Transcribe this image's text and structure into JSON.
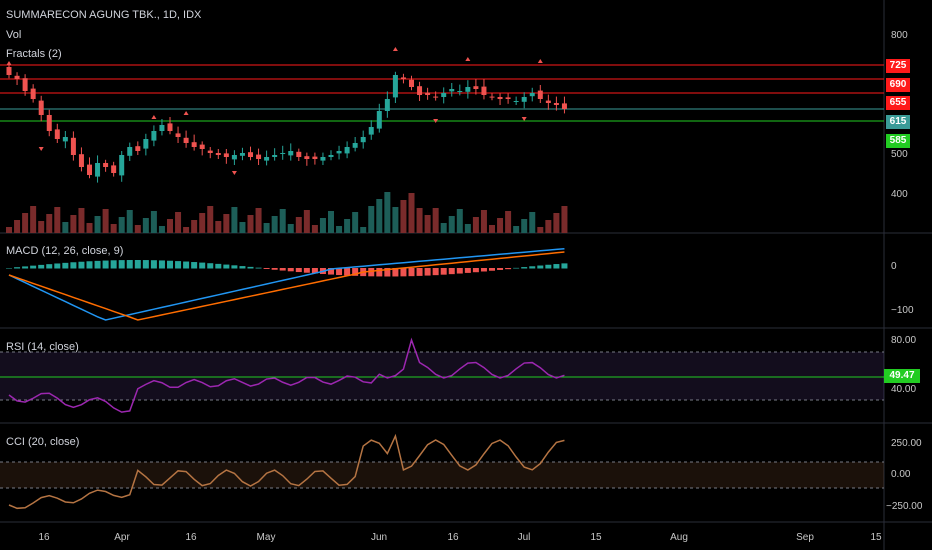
{
  "header": {
    "symbol_title": "SUMMARECON AGUNG TBK., 1D, IDX",
    "vol_label": "Vol",
    "fractals_label": "Fractals (2)"
  },
  "panes": {
    "macd_label": "MACD (12, 26, close, 9)",
    "rsi_label": "RSI (14, close)",
    "cci_label": "CCI (20, close)"
  },
  "price_axis": {
    "ticks": [
      "800",
      "500",
      "400"
    ],
    "levels": [
      {
        "value": "725",
        "color": "#ff1a1a"
      },
      {
        "value": "690",
        "color": "#ff1a1a"
      },
      {
        "value": "655",
        "color": "#ff1a1a"
      },
      {
        "value": "615",
        "color": "#3a9b98"
      },
      {
        "value": "585",
        "color": "#22cc22"
      }
    ]
  },
  "macd_axis": {
    "ticks": [
      "0",
      "−100"
    ]
  },
  "rsi_axis": {
    "ticks": [
      "80.00",
      "40.00"
    ],
    "current": "49.47"
  },
  "cci_axis": {
    "ticks": [
      "250.00",
      "0.00",
      "−250.00"
    ]
  },
  "time_axis": {
    "labels": [
      "16",
      "Apr",
      "16",
      "May",
      "Jun",
      "16",
      "Jul",
      "15",
      "Aug",
      "Sep",
      "15"
    ]
  },
  "colors": {
    "up": "#26a69a",
    "down": "#ef5350",
    "macd_line": "#2196f3",
    "signal_line": "#ff6d00",
    "rsi_line": "#9c27b0",
    "cci_line": "#b57443",
    "resistance": "#ff1a1a",
    "support": "#22cc22"
  },
  "chart_data": {
    "type": "candlestick",
    "title": "SUMMARECON AGUNG TBK., 1D, IDX",
    "closes": [
      700,
      690,
      660,
      640,
      600,
      560,
      540,
      545,
      500,
      470,
      450,
      480,
      470,
      455,
      500,
      520,
      510,
      540,
      560,
      575,
      560,
      545,
      530,
      520,
      515,
      505,
      500,
      495,
      500,
      505,
      495,
      490,
      495,
      500,
      505,
      510,
      495,
      490,
      490,
      495,
      500,
      510,
      520,
      530,
      545,
      570,
      610,
      640,
      700,
      690,
      670,
      650,
      650,
      645,
      655,
      665,
      660,
      670,
      665,
      650,
      645,
      640,
      640,
      635,
      645,
      655,
      640,
      630,
      625,
      615
    ],
    "price_levels": [
      725,
      690,
      655,
      615,
      585
    ]
  }
}
